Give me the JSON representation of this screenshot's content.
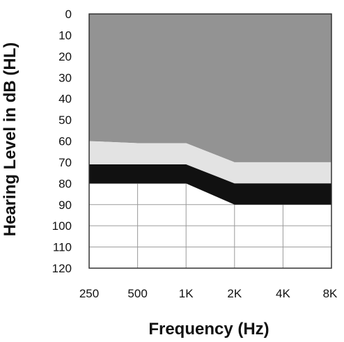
{
  "chart_data": {
    "type": "area",
    "xlabel": "Frequency (Hz)",
    "ylabel": "Hearing Level in dB (HL)",
    "categories": [
      "250",
      "500",
      "1K",
      "2K",
      "4K",
      "8K"
    ],
    "ylim": [
      0,
      120
    ],
    "y_inverted": true,
    "y_ticks": [
      0,
      10,
      20,
      30,
      40,
      50,
      60,
      70,
      80,
      90,
      100,
      110,
      120
    ],
    "grid": true,
    "bands": [
      {
        "from": [
          0,
          0,
          0,
          0,
          0,
          0
        ],
        "to": [
          60,
          61,
          61,
          70,
          70,
          70
        ],
        "color": "#939393"
      },
      {
        "from": [
          60,
          61,
          61,
          70,
          70,
          70
        ],
        "to": [
          71,
          71,
          71,
          80,
          80,
          80
        ],
        "color": "#e3e3e3"
      },
      {
        "from": [
          71,
          71,
          71,
          80,
          80,
          80
        ],
        "to": [
          80,
          80,
          80,
          90,
          90,
          90
        ],
        "color": "#111111"
      }
    ]
  }
}
